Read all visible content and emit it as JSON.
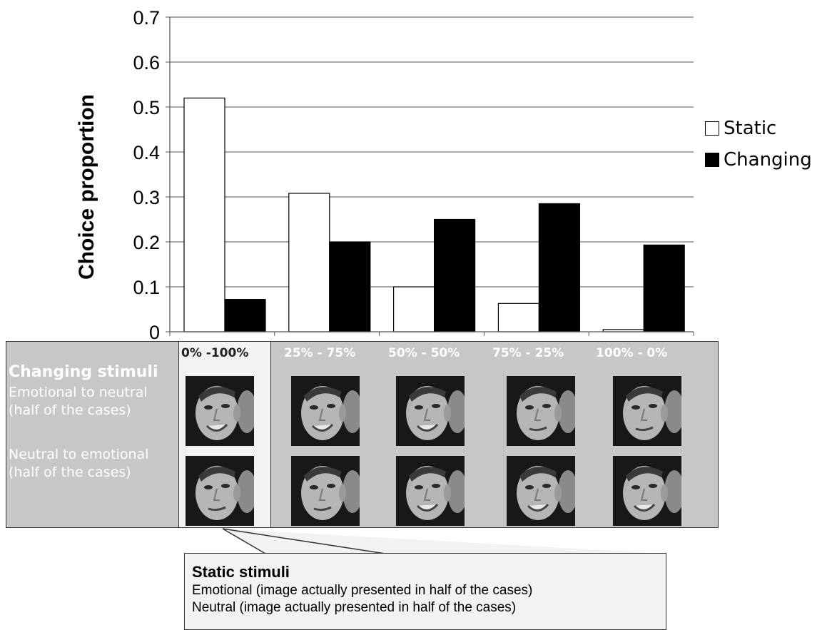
{
  "chart_data": {
    "type": "bar",
    "ylabel": "Choice proportion",
    "xlabel": "",
    "ylim": [
      0,
      0.7
    ],
    "yticks": [
      "0",
      "0.1",
      "0.2",
      "0.3",
      "0.4",
      "0.5",
      "0.6",
      "0.7"
    ],
    "grid": true,
    "legend_position": "right",
    "categories": [
      "0% -100%",
      "25% - 75%",
      "50% - 50%",
      "75% - 25%",
      "100% - 0%"
    ],
    "series": [
      {
        "name": "Static",
        "color": "#ffffff",
        "values": [
          0.52,
          0.308,
          0.1,
          0.063,
          0.005
        ]
      },
      {
        "name": "Changing",
        "color": "#000000",
        "values": [
          0.072,
          0.2,
          0.25,
          0.285,
          0.193
        ]
      }
    ]
  },
  "panel": {
    "title": "Changing stimuli",
    "row1": "Emotional to neutral\n(half of the cases)",
    "row2": "Neutral to emotional\n(half of the cases)",
    "row1_l1": "Emotional to neutral",
    "row1_l2": "(half of the cases)",
    "row2_l1": "Neutral to emotional",
    "row2_l2": "(half of the cases)"
  },
  "callout": {
    "title": "Static stimuli",
    "line1": "Emotional (image actually presented in half of the cases)",
    "line2": "Neutral (image actually presented in half of the cases)"
  }
}
